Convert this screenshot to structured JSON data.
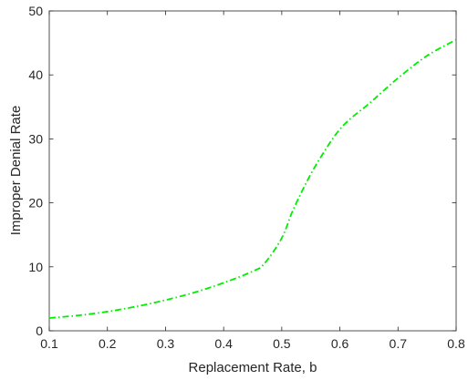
{
  "chart_data": {
    "type": "line",
    "title": "",
    "xlabel": "Replacement Rate, b",
    "ylabel": "Improper Denial Rate",
    "xlim": [
      0.1,
      0.8
    ],
    "ylim": [
      0,
      50
    ],
    "xticks": [
      "0.1",
      "0.2",
      "0.3",
      "0.4",
      "0.5",
      "0.6",
      "0.7",
      "0.8"
    ],
    "yticks": [
      "0",
      "10",
      "20",
      "30",
      "40",
      "50"
    ],
    "grid": false,
    "legend": "none",
    "series": [
      {
        "color": "#00ee00",
        "line_style": "dash-dot",
        "x": [
          0.1,
          0.15,
          0.2,
          0.25,
          0.3,
          0.35,
          0.4,
          0.45,
          0.47,
          0.5,
          0.52,
          0.55,
          0.58,
          0.6,
          0.62,
          0.65,
          0.7,
          0.75,
          0.8
        ],
        "y": [
          2.0,
          2.4,
          3.0,
          3.8,
          4.8,
          6.0,
          7.5,
          9.3,
          10.5,
          14.5,
          19.0,
          24.5,
          29.0,
          31.5,
          33.3,
          35.5,
          39.5,
          43.0,
          45.5
        ]
      }
    ]
  }
}
